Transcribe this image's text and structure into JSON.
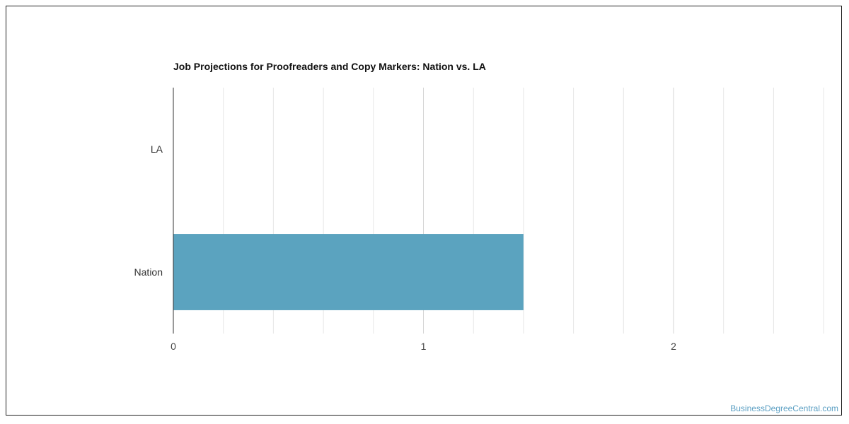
{
  "chart_data": {
    "type": "bar",
    "orientation": "horizontal",
    "title": "Job Projections for Proofreaders and Copy Markers: Nation vs. LA",
    "categories": [
      "LA",
      "Nation"
    ],
    "values": [
      0,
      1.4
    ],
    "xlim": [
      0,
      2.5
    ],
    "xticks": [
      0,
      1,
      2
    ],
    "grid": true,
    "bar_color": "#5ba3bf"
  },
  "watermark": "BusinessDegreeCentral.com"
}
